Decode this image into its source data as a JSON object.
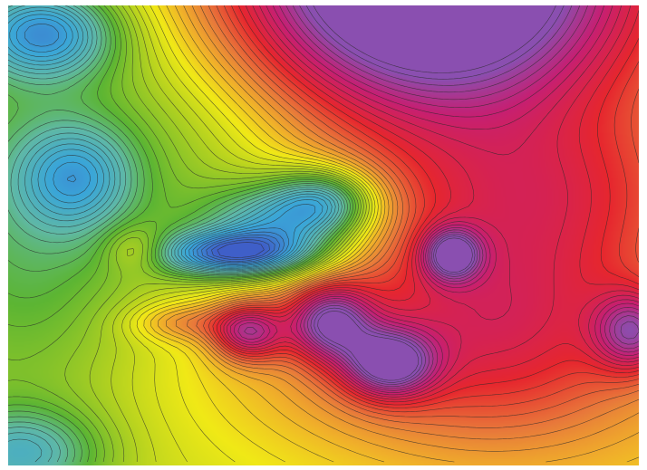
{
  "map": {
    "type": "contour-heatmap",
    "title": "",
    "labels": [],
    "palette": {
      "very_low": "#3f5fc8",
      "low": "#3aa6d8",
      "teal": "#5fb8a6",
      "green": "#5cb533",
      "yellow_green": "#b7d31f",
      "yellow": "#f0e916",
      "orange_yellow": "#f0b02a",
      "orange": "#e87a3a",
      "red": "#e6262e",
      "magenta": "#c61f72",
      "purple": "#8a4fb0",
      "contour_line": "#2b2b2b"
    },
    "features": [
      {
        "name": "dominant-high-north",
        "kind": "high"
      },
      {
        "name": "central-basin-blue",
        "kind": "low"
      },
      {
        "name": "northwest-low-blue",
        "kind": "low"
      },
      {
        "name": "west-plateau-teal",
        "kind": "low"
      },
      {
        "name": "southern-red-peaks",
        "kind": "high"
      },
      {
        "name": "eastern-orange-plateau",
        "kind": "high"
      }
    ]
  }
}
